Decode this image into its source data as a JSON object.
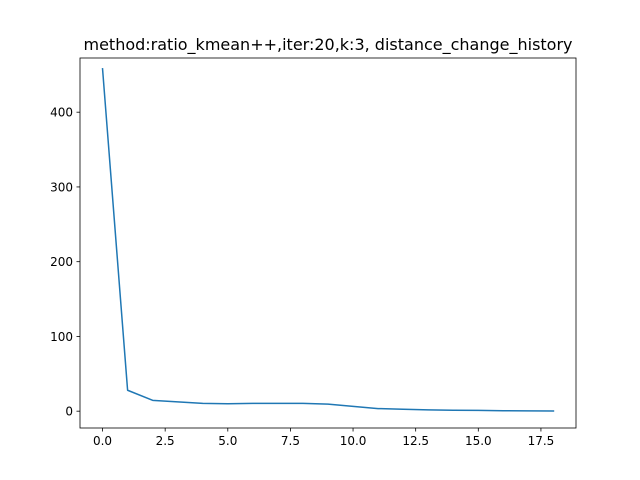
{
  "chart_data": {
    "type": "line",
    "title": "method:ratio_kmean++,iter:20,k:3, distance_change_history",
    "xlabel": "",
    "ylabel": "",
    "xlim": [
      -0.9,
      18.9
    ],
    "ylim": [
      -22.5,
      472.5
    ],
    "x_ticks": [
      0.0,
      2.5,
      5.0,
      7.5,
      10.0,
      12.5,
      15.0,
      17.5
    ],
    "x_tick_labels": [
      "0.0",
      "2.5",
      "5.0",
      "7.5",
      "10.0",
      "12.5",
      "15.0",
      "17.5"
    ],
    "y_ticks": [
      0,
      100,
      200,
      300,
      400
    ],
    "y_tick_labels": [
      "0",
      "100",
      "200",
      "300",
      "400"
    ],
    "grid": false,
    "series": [
      {
        "color": "#1f77b4",
        "x": [
          0,
          1,
          2,
          3,
          4,
          5,
          6,
          7,
          8,
          9,
          10,
          11,
          12,
          13,
          14,
          15,
          16,
          17,
          18
        ],
        "y": [
          458,
          28,
          14.5,
          12.5,
          10.5,
          10,
          10.5,
          10.5,
          10.5,
          9.5,
          6.5,
          3.5,
          2.5,
          1.8,
          1.2,
          1.0,
          0.6,
          0.4,
          0.2
        ]
      }
    ]
  }
}
